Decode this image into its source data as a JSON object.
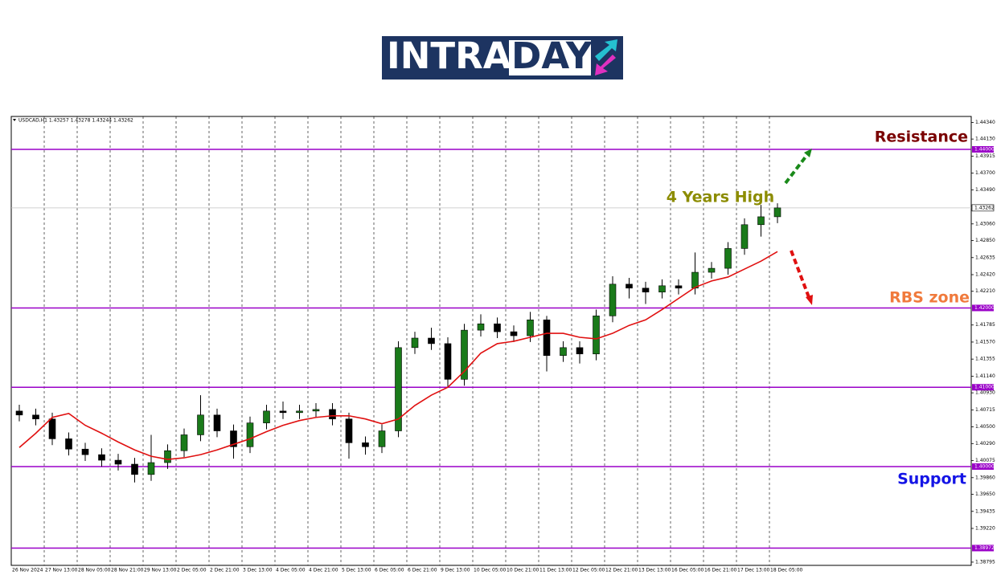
{
  "logo": {
    "parts": [
      "INTRA",
      "DAY"
    ]
  },
  "chart_data": {
    "type": "candlestick",
    "header": "USDCAD,H1  1.43257 1.43278 1.43244 1.43262",
    "x": [
      "26 Nov 2024",
      null,
      "27 Nov 13:00",
      null,
      "28 Nov 05:00",
      null,
      "28 Nov 21:00",
      null,
      "29 Nov 13:00",
      null,
      "2 Dec 05:00",
      null,
      "2 Dec 21:00",
      null,
      "3 Dec 13:00",
      null,
      "4 Dec 05:00",
      null,
      "4 Dec 21:00",
      null,
      "5 Dec 13:00",
      null,
      "6 Dec 05:00",
      null,
      "6 Dec 21:00",
      null,
      "9 Dec 13:00",
      null,
      "10 Dec 05:00",
      null,
      "10 Dec 21:00",
      null,
      "11 Dec 13:00",
      null,
      "12 Dec 05:00",
      null,
      "12 Dec 21:00",
      null,
      "13 Dec 13:00",
      null,
      "16 Dec 05:00",
      null,
      "16 Dec 21:00",
      null,
      "17 Dec 13:00",
      null,
      "18 Dec 05:00"
    ],
    "open": [
      1.407,
      1.4065,
      1.406,
      1.4035,
      1.4022,
      1.4015,
      1.4008,
      1.4003,
      1.399,
      1.4005,
      1.402,
      1.404,
      1.4065,
      1.4045,
      1.4025,
      1.4055,
      1.407,
      1.4068,
      1.407,
      1.4072,
      1.406,
      1.403,
      1.4025,
      1.4045,
      1.415,
      1.4162,
      1.4155,
      1.411,
      1.4172,
      1.418,
      1.417,
      1.4165,
      1.4185,
      1.414,
      1.415,
      1.4142,
      1.419,
      1.423,
      1.4225,
      1.422,
      1.4228,
      1.4225,
      1.4245,
      1.425,
      1.4275,
      1.4305,
      1.4315
    ],
    "high": [
      1.4078,
      1.4073,
      1.4068,
      1.4043,
      1.403,
      1.4023,
      1.4016,
      1.4011,
      1.404,
      1.4028,
      1.4048,
      1.409,
      1.4073,
      1.4053,
      1.4063,
      1.4078,
      1.4082,
      1.4078,
      1.408,
      1.408,
      1.4068,
      1.4038,
      1.4053,
      1.4158,
      1.417,
      1.4175,
      1.4163,
      1.418,
      1.4192,
      1.4188,
      1.4178,
      1.4195,
      1.419,
      1.4158,
      1.4158,
      1.4198,
      1.424,
      1.4238,
      1.4233,
      1.4236,
      1.4236,
      1.427,
      1.4258,
      1.4283,
      1.4313,
      1.433,
      1.4332
    ],
    "low": [
      1.4057,
      1.4052,
      1.4027,
      1.4014,
      1.4007,
      1.4,
      1.3995,
      1.398,
      1.3982,
      1.3997,
      1.4012,
      1.4032,
      1.4037,
      1.401,
      1.4017,
      1.4047,
      1.406,
      1.406,
      1.4062,
      1.4052,
      1.401,
      1.4015,
      1.4017,
      1.4037,
      1.4142,
      1.4147,
      1.41,
      1.4102,
      1.4164,
      1.4162,
      1.4157,
      1.4157,
      1.412,
      1.4132,
      1.413,
      1.4134,
      1.4182,
      1.4212,
      1.4205,
      1.4212,
      1.4217,
      1.4217,
      1.4237,
      1.4242,
      1.4267,
      1.429,
      1.4307
    ],
    "close": [
      1.4065,
      1.406,
      1.4035,
      1.4022,
      1.4015,
      1.4008,
      1.4003,
      1.399,
      1.4005,
      1.402,
      1.404,
      1.4065,
      1.4045,
      1.4025,
      1.4055,
      1.407,
      1.4068,
      1.407,
      1.4072,
      1.406,
      1.403,
      1.4025,
      1.4045,
      1.415,
      1.4162,
      1.4155,
      1.411,
      1.4172,
      1.418,
      1.417,
      1.4165,
      1.4185,
      1.414,
      1.415,
      1.4142,
      1.419,
      1.423,
      1.4225,
      1.422,
      1.4228,
      1.4225,
      1.4245,
      1.425,
      1.4275,
      1.4305,
      1.4315,
      1.43262
    ],
    "up_color": "#1a7a1a",
    "down_color": "#000000",
    "moving_average": {
      "color": "#e01010",
      "values": [
        1.4024,
        1.4042,
        1.4062,
        1.4067,
        1.4052,
        1.4042,
        1.4031,
        1.4021,
        1.4013,
        1.4009,
        1.4011,
        1.4015,
        1.4021,
        1.4028,
        1.4035,
        1.4044,
        1.4052,
        1.4058,
        1.4062,
        1.4064,
        1.4064,
        1.406,
        1.4054,
        1.406,
        1.4077,
        1.409,
        1.41,
        1.412,
        1.4143,
        1.4155,
        1.4158,
        1.4163,
        1.4168,
        1.4168,
        1.4163,
        1.4161,
        1.4168,
        1.4178,
        1.4185,
        1.4198,
        1.4212,
        1.4226,
        1.4234,
        1.4239,
        1.4249,
        1.4259,
        1.4271
      ]
    },
    "ylim": [
      1.38754,
      1.44415
    ],
    "yticks": [
      {
        "value": 1.4434,
        "label": "1.44340"
      },
      {
        "value": 1.4413,
        "label": "1.44130"
      },
      {
        "value": 1.43915,
        "label": "1.43915"
      },
      {
        "value": 1.437,
        "label": "1.43700"
      },
      {
        "value": 1.4349,
        "label": "1.43490"
      },
      {
        "value": 1.4306,
        "label": "1.43060"
      },
      {
        "value": 1.4285,
        "label": "1.42850"
      },
      {
        "value": 1.42635,
        "label": "1.42635"
      },
      {
        "value": 1.4242,
        "label": "1.42420"
      },
      {
        "value": 1.4221,
        "label": "1.42210"
      },
      {
        "value": 1.41785,
        "label": "1.41785"
      },
      {
        "value": 1.4157,
        "label": "1.41570"
      },
      {
        "value": 1.41355,
        "label": "1.41355"
      },
      {
        "value": 1.4114,
        "label": "1.41140"
      },
      {
        "value": 1.4093,
        "label": "1.40930"
      },
      {
        "value": 1.40715,
        "label": "1.40715"
      },
      {
        "value": 1.405,
        "label": "1.40500"
      },
      {
        "value": 1.4029,
        "label": "1.40290"
      },
      {
        "value": 1.40075,
        "label": "1.40075"
      },
      {
        "value": 1.3986,
        "label": "1.39860"
      },
      {
        "value": 1.3965,
        "label": "1.39650"
      },
      {
        "value": 1.39435,
        "label": "1.39435"
      },
      {
        "value": 1.3922,
        "label": "1.39220"
      },
      {
        "value": 1.38795,
        "label": "1.38795"
      }
    ],
    "level_color": "#9a00c8",
    "levels": [
      {
        "value": 1.44,
        "label": "1.44000"
      },
      {
        "value": 1.42,
        "label": "1.42000"
      },
      {
        "value": 1.41,
        "label": "1.41000"
      },
      {
        "value": 1.4,
        "label": "1.40000"
      },
      {
        "value": 1.38972,
        "label": "1.38972"
      }
    ],
    "last_price": {
      "value": 1.43262,
      "label": "1.43262"
    },
    "annotations": [
      {
        "text": "Resistance",
        "color": "#7a0000"
      },
      {
        "text": "4 Years High",
        "color": "#8c8c00"
      },
      {
        "text": "RBS zone",
        "color": "#f07a3c"
      },
      {
        "text": "Support",
        "color": "#1414e6"
      }
    ]
  }
}
